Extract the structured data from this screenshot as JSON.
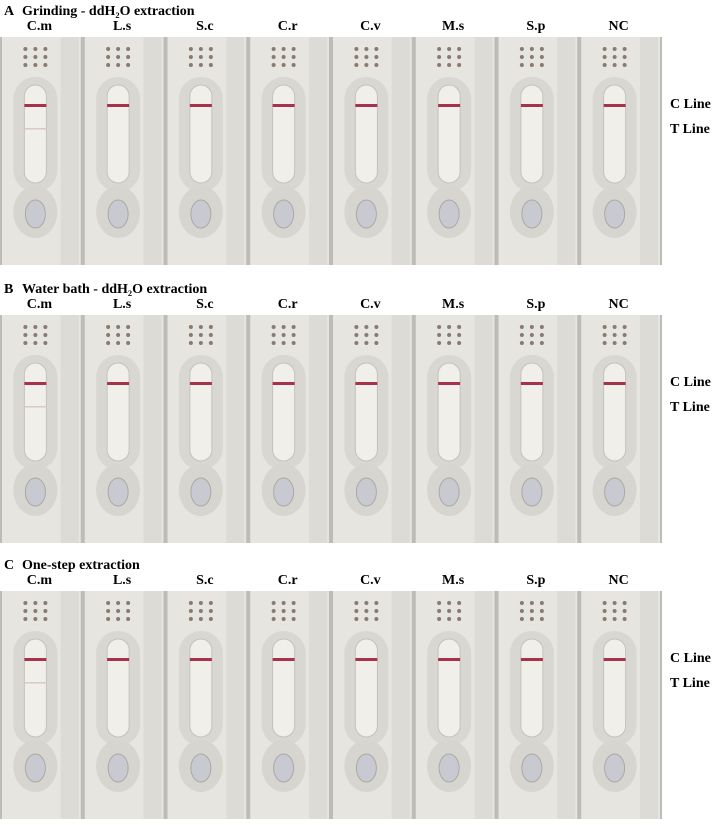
{
  "panels": [
    {
      "letter": "A",
      "title": "Grinding - ddH₂O extraction",
      "strips": [
        "C.m",
        "L.s",
        "S.c",
        "C.r",
        "C.v",
        "M.s",
        "S.p",
        "NC"
      ],
      "c_line": "C Line",
      "t_line": "T Line"
    },
    {
      "letter": "B",
      "title": "Water bath - ddH₂O extraction",
      "strips": [
        "C.m",
        "L.s",
        "S.c",
        "C.r",
        "C.v",
        "M.s",
        "S.p",
        "NC"
      ],
      "c_line": "C Line",
      "t_line": "T Line"
    },
    {
      "letter": "C",
      "title": "One-step extraction",
      "strips": [
        "C.m",
        "L.s",
        "S.c",
        "C.r",
        "C.v",
        "M.s",
        "S.p",
        "NC"
      ],
      "c_line": "C Line",
      "t_line": "T Line"
    }
  ]
}
